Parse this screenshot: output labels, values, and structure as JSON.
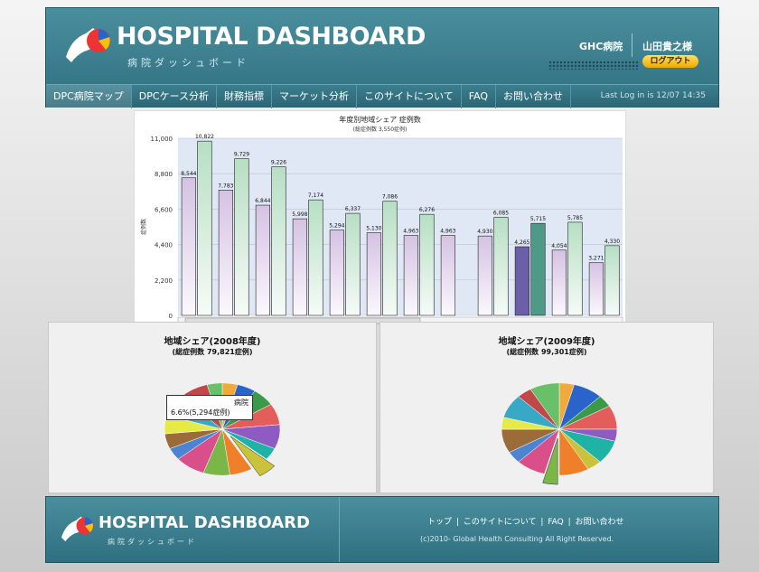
{
  "header": {
    "logo_text": "HOSPITAL DASHBOARD",
    "logo_sub": "病院ダッシュボード",
    "hospital": "GHC病院",
    "user": "山田貴之様",
    "logout": "ログアウト",
    "last_login": "Last Log in is 12/07 14:35"
  },
  "nav": {
    "items": [
      "DPC病院マップ",
      "DPCケース分析",
      "財務指標",
      "マーケット分析",
      "このサイトについて",
      "FAQ",
      "お問い合わせ"
    ]
  },
  "chart_data": {
    "type": "bar",
    "title": "年度別地域シェア 症例数",
    "subtitle": "(総症例数 3,550症例)",
    "ylabel": "症例数",
    "ylim": [
      0,
      11000
    ],
    "yticks": [
      "0",
      "2,200",
      "4,400",
      "6,600",
      "8,800",
      "11,000"
    ],
    "grid": true,
    "pairs": [
      {
        "v2008": 8544,
        "v2009": 10822
      },
      {
        "v2008": 7783,
        "v2009": 9729
      },
      {
        "v2008": 6844,
        "v2009": 9226
      },
      {
        "v2008": 5998,
        "v2009": 7174
      },
      {
        "v2008": 5294,
        "v2009": 6337
      },
      {
        "v2008": 5130,
        "v2009": 7086
      },
      {
        "v2008": 4963,
        "v2009": 6276
      },
      {
        "v2008": 4963,
        "v2009": null
      },
      {
        "v2008": 4930,
        "v2009": 6085
      },
      {
        "v2008": 4265,
        "v2009": 5715,
        "highlight": true
      },
      {
        "v2008": 4054,
        "v2009": 5785
      },
      {
        "v2008": 3271,
        "v2009": 4330
      }
    ],
    "labels2008": [
      "8,544",
      "7,783",
      "6,844",
      "5,998",
      "5,294",
      "5,130",
      "4,963",
      "4,963",
      "4,930",
      "4,265",
      "4,054",
      "3,271"
    ],
    "labels2009": [
      "10,822",
      "9,729",
      "9,226",
      "7,174",
      "6,337",
      "7,086",
      "6,276",
      "",
      "6,085",
      "5,715",
      "5,785",
      "4,330"
    ]
  },
  "pie2008": {
    "title": "地域シェア(2008年度)",
    "subtitle": "(総症例数 79,821症例)",
    "tooltip_name": "病院",
    "tooltip_value": "6.6%(5,294症例)"
  },
  "pie2009": {
    "title": "地域シェア(2009年度)",
    "subtitle": "(総症例数 99,301症例)"
  },
  "footer": {
    "logo_text": "HOSPITAL DASHBOARD",
    "logo_sub": "病院ダッシュボード",
    "links": [
      "トップ",
      "このサイトについて",
      "FAQ",
      "お問い合わせ"
    ],
    "copyright": "(c)2010- Global Health Consulting All Right Reserved."
  },
  "colors": {
    "accent": "#2f6f80",
    "bar2008": "#e6d9ef",
    "bar2009": "#d2ecd9",
    "highlight2008": "#6a5fa8",
    "highlight2009": "#4f9a86"
  }
}
